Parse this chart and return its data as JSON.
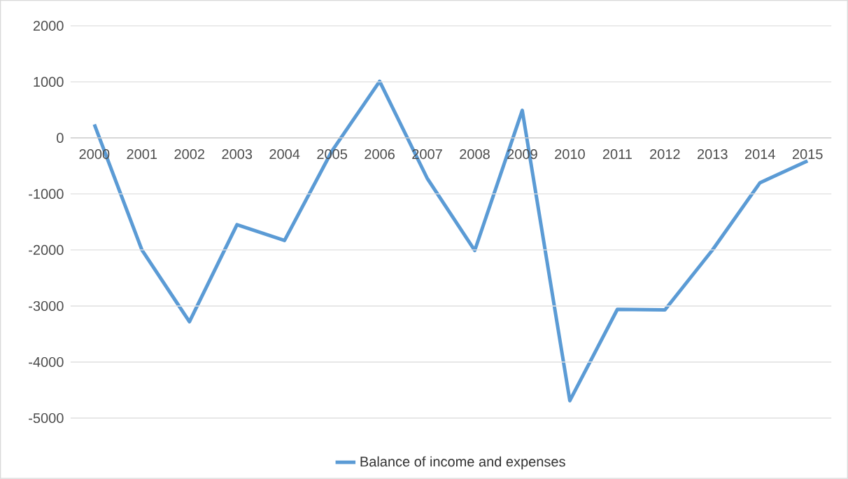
{
  "chart_data": {
    "type": "line",
    "categories": [
      "2000",
      "2001",
      "2002",
      "2003",
      "2004",
      "2005",
      "2006",
      "2007",
      "2008",
      "2009",
      "2010",
      "2011",
      "2012",
      "2013",
      "2014",
      "2015"
    ],
    "series": [
      {
        "name": "Balance of income and expenses",
        "color": "#5b9bd5",
        "values": [
          240,
          -2000,
          -3280,
          -1550,
          -1830,
          -230,
          1010,
          -720,
          -2010,
          490,
          -4690,
          -3060,
          -3070,
          -2000,
          -800,
          -410
        ]
      }
    ],
    "ylim": [
      -5000,
      2000
    ],
    "yticks": [
      -5000,
      -4000,
      -3000,
      -2000,
      -1000,
      0,
      1000,
      2000
    ],
    "grid": "y",
    "legend": "bottom",
    "marker": "none",
    "line_style": "solid"
  }
}
